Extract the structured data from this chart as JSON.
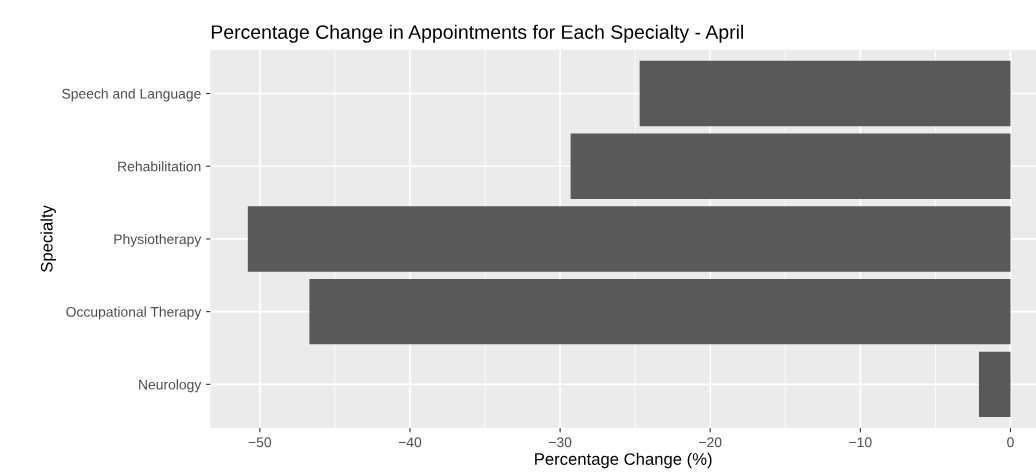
{
  "chart_data": {
    "type": "bar",
    "orientation": "horizontal",
    "title": "Percentage Change in Appointments for Each Specialty - April",
    "xlabel": "Percentage Change (%)",
    "ylabel": "Specialty",
    "categories": [
      "Speech and Language",
      "Rehabilitation",
      "Physiotherapy",
      "Occupational Therapy",
      "Neurology"
    ],
    "values": [
      -24.7,
      -29.3,
      -50.8,
      -46.7,
      -2.1
    ],
    "color": "#595959",
    "xlim": [
      -53.3,
      1.7
    ],
    "xticks": [
      -50,
      -40,
      -30,
      -20,
      -10,
      0
    ],
    "grid": true,
    "legend": false
  }
}
